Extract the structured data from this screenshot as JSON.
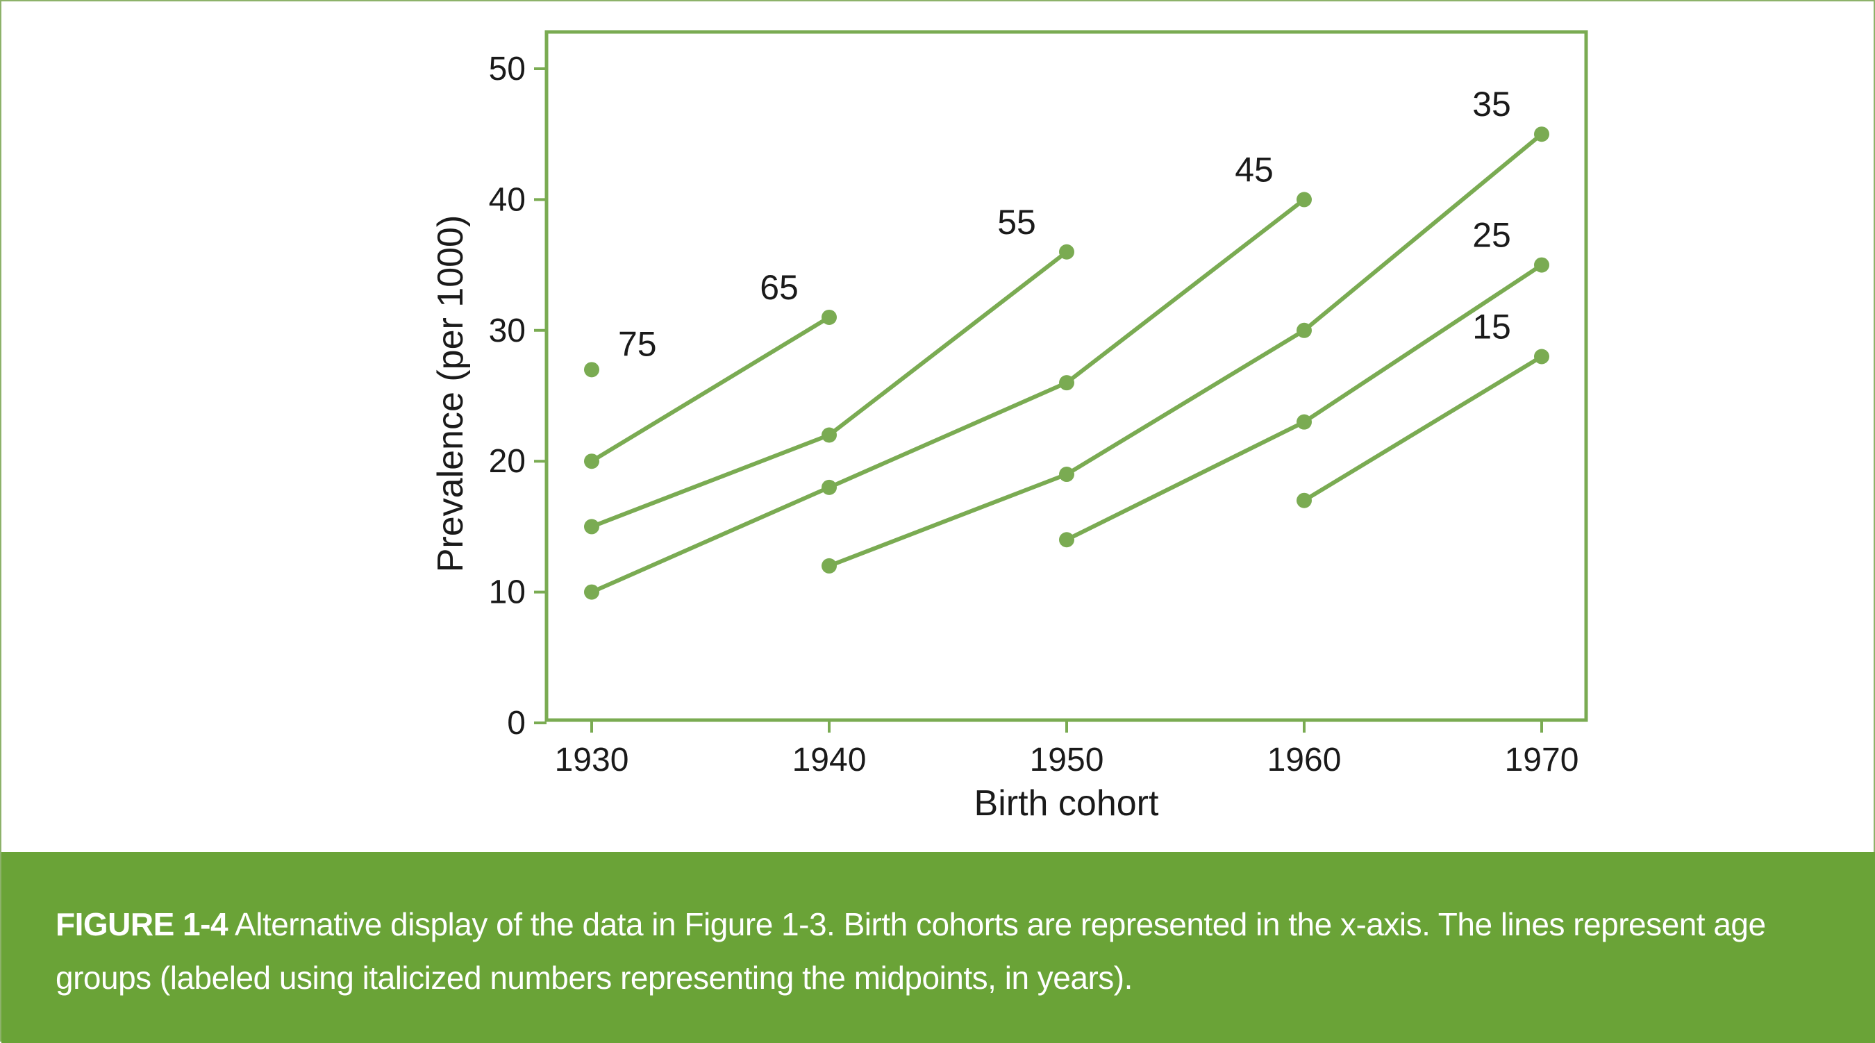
{
  "chart_data": {
    "type": "line",
    "xlabel": "Birth cohort",
    "ylabel": "Prevalence (per 1000)",
    "xlim": [
      1930,
      1970
    ],
    "ylim": [
      0,
      50
    ],
    "x_ticks": [
      1930,
      1940,
      1950,
      1960,
      1970
    ],
    "y_ticks": [
      0,
      10,
      20,
      30,
      40,
      50
    ],
    "grid": false,
    "color": "#7aab52",
    "series": [
      {
        "name": "75",
        "x": [
          1930
        ],
        "values": [
          27
        ],
        "label_anchor": "right"
      },
      {
        "name": "65",
        "x": [
          1930,
          1940
        ],
        "values": [
          20,
          31
        ],
        "label_anchor": "above"
      },
      {
        "name": "55",
        "x": [
          1930,
          1940,
          1950
        ],
        "values": [
          15,
          22,
          36
        ],
        "label_anchor": "above"
      },
      {
        "name": "45",
        "x": [
          1930,
          1940,
          1950,
          1960
        ],
        "values": [
          10,
          18,
          26,
          40
        ],
        "label_anchor": "above"
      },
      {
        "name": "35",
        "x": [
          1940,
          1950,
          1960,
          1970
        ],
        "values": [
          12,
          19,
          30,
          45
        ],
        "label_anchor": "above"
      },
      {
        "name": "25",
        "x": [
          1950,
          1960,
          1970
        ],
        "values": [
          14,
          23,
          35
        ],
        "label_anchor": "above"
      },
      {
        "name": "15",
        "x": [
          1960,
          1970
        ],
        "values": [
          17,
          28
        ],
        "label_anchor": "above"
      }
    ]
  },
  "caption": {
    "label": "FIGURE 1-4",
    "text": "Alternative display of the data in Figure 1-3. Birth cohorts are represented in the x-axis. The lines represent age groups (labeled using italicized numbers representing the midpoints, in years)."
  },
  "colors": {
    "accent": "#7aab52",
    "caption_background": "#6aa337",
    "frame_border": "#8db26a",
    "text": "#1a1a1a"
  }
}
